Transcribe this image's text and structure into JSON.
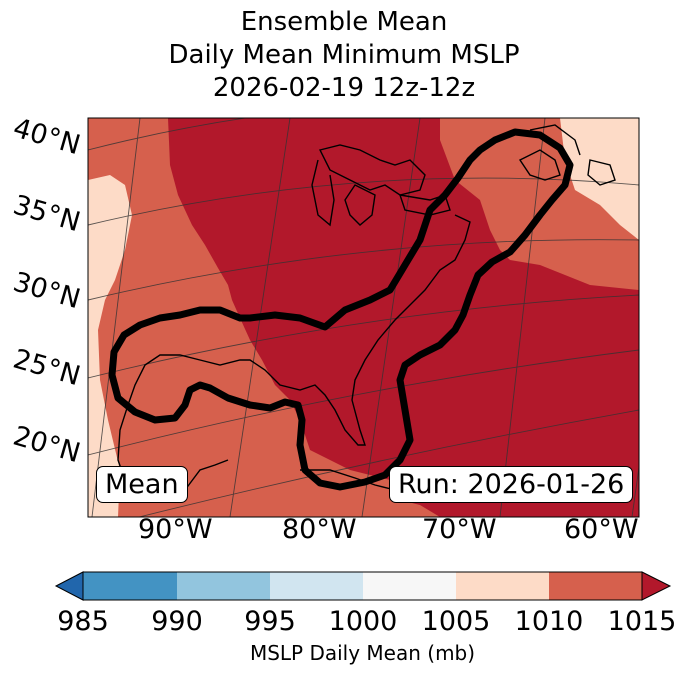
{
  "title": {
    "line1": "Ensemble Mean",
    "line2": "Daily Mean Minimum MSLP",
    "line3": "2026-02-19 12z-12z"
  },
  "map": {
    "latitude_labels": [
      "40°N",
      "35°N",
      "30°N",
      "25°N",
      "20°N"
    ],
    "longitude_labels": [
      "90°W",
      "80°W",
      "70°W",
      "60°W"
    ],
    "left_box": "Mean",
    "right_box": "Run: 2026-01-26",
    "colors": {
      "band_1010_1015": "#b2182b",
      "band_1005_1010": "#d6604d",
      "band_1000_1005": "#fddbc7",
      "ocean_outline": "#000000"
    }
  },
  "colorbar": {
    "ticks": [
      "985",
      "990",
      "995",
      "1000",
      "1005",
      "1010",
      "1015"
    ],
    "label": "MSLP Daily Mean (mb)",
    "colors": [
      "#2166ac",
      "#4393c3",
      "#92c5de",
      "#d1e5f0",
      "#f7f7f7",
      "#fddbc7",
      "#d6604d",
      "#b2182b"
    ]
  }
}
